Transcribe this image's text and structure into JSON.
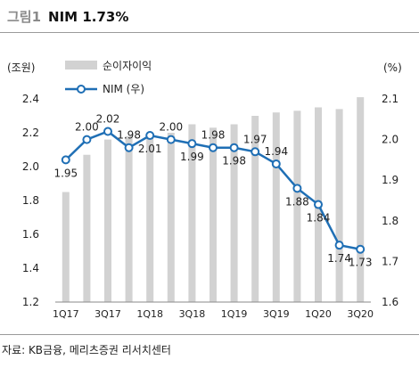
{
  "header": {
    "figure_label": "그림1",
    "title": "NIM 1.73%"
  },
  "source_note": "자료: KB금융, 메리츠증권 리서치센터",
  "colors": {
    "bar": "#d2d2d2",
    "line": "#1f6fb5",
    "marker_fill": "#ffffff"
  },
  "chart_data": {
    "type": "bar+line",
    "categories": [
      "1Q17",
      "2Q17",
      "3Q17",
      "4Q17",
      "1Q18",
      "2Q18",
      "3Q18",
      "4Q18",
      "1Q19",
      "2Q19",
      "3Q19",
      "4Q19",
      "1Q20",
      "2Q20",
      "3Q20"
    ],
    "x_tick_labels": [
      "1Q17",
      "3Q17",
      "1Q18",
      "3Q18",
      "1Q19",
      "3Q19",
      "1Q20",
      "3Q20"
    ],
    "left_axis": {
      "unit_label": "(조원)",
      "range": [
        1.2,
        2.4
      ],
      "ticks": [
        "1.2",
        "1.4",
        "1.6",
        "1.8",
        "2.0",
        "2.2",
        "2.4"
      ]
    },
    "right_axis": {
      "unit_label": "(%)",
      "range": [
        1.6,
        2.1
      ],
      "ticks": [
        "1.6",
        "1.7",
        "1.8",
        "1.9",
        "2.0",
        "2.1"
      ]
    },
    "series": [
      {
        "name": "순이자이익",
        "type": "bar",
        "axis": "left",
        "values": [
          1.85,
          2.07,
          2.16,
          2.18,
          2.18,
          2.2,
          2.25,
          2.23,
          2.25,
          2.3,
          2.32,
          2.33,
          2.35,
          2.34,
          2.41
        ]
      },
      {
        "name": "NIM (우)",
        "type": "line",
        "axis": "right",
        "values": [
          1.95,
          2.0,
          2.02,
          1.98,
          2.01,
          2.0,
          1.99,
          1.98,
          1.98,
          1.97,
          1.94,
          1.88,
          1.84,
          1.74,
          1.73
        ],
        "data_labels": [
          "1.95",
          "2.00",
          "2.02",
          "1.98",
          "2.01",
          "2.00",
          "1.99",
          "1.98",
          "1.98",
          "1.97",
          "1.94",
          "1.88",
          "1.84",
          "1.74",
          "1.73"
        ]
      }
    ],
    "legend": {
      "placement": "top-left"
    }
  }
}
